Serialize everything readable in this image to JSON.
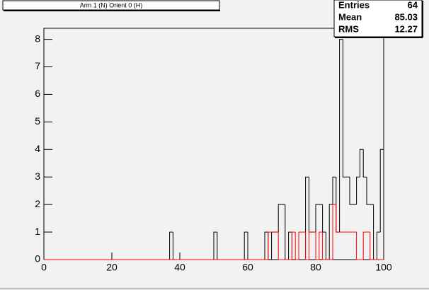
{
  "chart_data": {
    "type": "histogram",
    "title": "Arm 1 (N) Orient 0 (H)",
    "bins": [
      0,
      1,
      2,
      3,
      4,
      5,
      6,
      7,
      8,
      9,
      10,
      11,
      12,
      13,
      14,
      15,
      16,
      17,
      18,
      19,
      20,
      21,
      22,
      23,
      24,
      25,
      26,
      27,
      28,
      29,
      30,
      31,
      32,
      33,
      34,
      35,
      36,
      37,
      38,
      39,
      40,
      41,
      42,
      43,
      44,
      45,
      46,
      47,
      48,
      49,
      50,
      51,
      52,
      53,
      54,
      55,
      56,
      57,
      58,
      59,
      60,
      61,
      62,
      63,
      64,
      65,
      66,
      67,
      68,
      69,
      70,
      71,
      72,
      73,
      74,
      75,
      76,
      77,
      78,
      79,
      80,
      81,
      82,
      83,
      84,
      85,
      86,
      87,
      88,
      89,
      90,
      91,
      92,
      93,
      94,
      95,
      96,
      97,
      98,
      99,
      100
    ],
    "series": [
      {
        "color": "#000000",
        "values": [
          0,
          0,
          0,
          0,
          0,
          0,
          0,
          0,
          0,
          0,
          0,
          0,
          0,
          0,
          0,
          0,
          0,
          0,
          0,
          0,
          0,
          0,
          0,
          0,
          0,
          0,
          0,
          0,
          0,
          0,
          0,
          0,
          0,
          0,
          0,
          0,
          0,
          1,
          0,
          0,
          0,
          0,
          0,
          0,
          0,
          0,
          0,
          0,
          0,
          0,
          1,
          0,
          0,
          0,
          0,
          0,
          0,
          0,
          0,
          1,
          0,
          0,
          0,
          0,
          0,
          1,
          0,
          1,
          1,
          2,
          2,
          0,
          1,
          0,
          0,
          0,
          0,
          3,
          1,
          1,
          2,
          2,
          1,
          0,
          2,
          3,
          1,
          8,
          3,
          3,
          2,
          2,
          3,
          4,
          3,
          2,
          2,
          0,
          1,
          4
        ]
      },
      {
        "color": "#ff0000",
        "values": [
          0,
          0,
          0,
          0,
          0,
          0,
          0,
          0,
          0,
          0,
          0,
          0,
          0,
          0,
          0,
          0,
          0,
          0,
          0,
          0,
          0,
          0,
          0,
          0,
          0,
          0,
          0,
          0,
          0,
          0,
          0,
          0,
          0,
          0,
          0,
          0,
          0,
          0,
          0,
          0,
          0,
          0,
          0,
          0,
          0,
          0,
          0,
          0,
          0,
          0,
          0,
          0,
          0,
          0,
          0,
          0,
          0,
          0,
          0,
          0,
          0,
          0,
          0,
          0,
          0,
          0,
          1,
          1,
          1,
          0,
          0,
          0,
          0,
          1,
          0,
          1,
          1,
          0,
          1,
          1,
          0,
          1,
          0,
          0,
          0,
          2,
          1,
          1,
          1,
          1,
          1,
          1,
          0,
          0,
          1,
          1,
          0,
          0,
          0,
          0
        ]
      }
    ],
    "xlim": [
      0,
      100
    ],
    "xticks": [
      0,
      20,
      40,
      60,
      80,
      100
    ],
    "ylim": [
      0,
      8.4
    ],
    "yticks": [
      0,
      1,
      2,
      3,
      4,
      5,
      6,
      7,
      8
    ],
    "stats": [
      {
        "label": "Entries",
        "value": 64
      },
      {
        "label": "Mean",
        "value": 85.03
      },
      {
        "label": "RMS",
        "value": 12.27
      }
    ]
  }
}
